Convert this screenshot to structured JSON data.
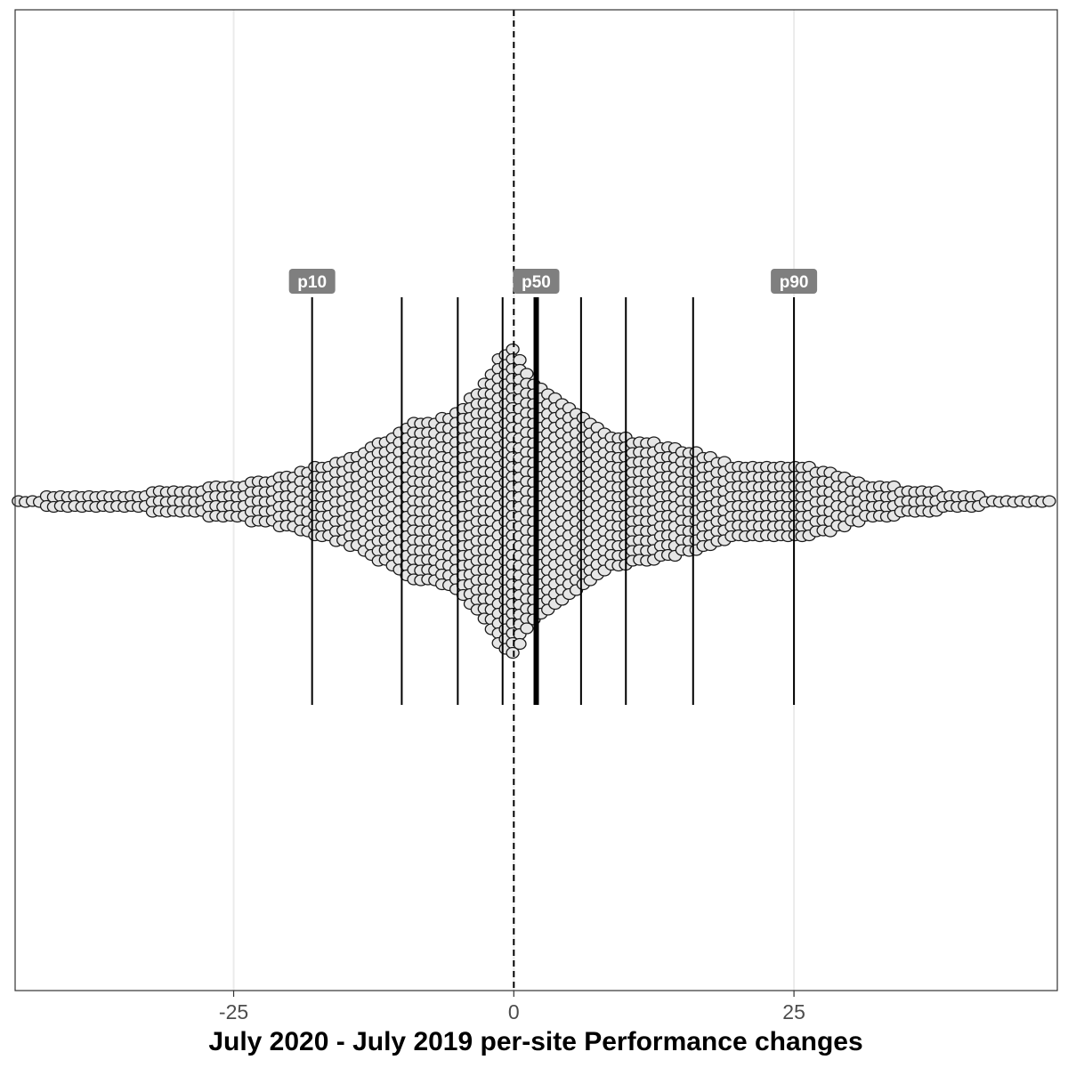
{
  "chart_data": {
    "type": "scatter",
    "subtype": "beeswarm",
    "title": "",
    "xlabel": "July 2020 - July 2019 per-site Performance changes",
    "ylabel": "",
    "xlim": [
      -44.5,
      48.5
    ],
    "x_ticks": [
      -25,
      0,
      25
    ],
    "x_tick_labels": [
      "-25",
      "0",
      "25"
    ],
    "grid": {
      "vertical_major": true,
      "horizontal": false
    },
    "reference_line": {
      "x": 0,
      "style": "dashed"
    },
    "percentile_lines": [
      {
        "x": -18,
        "label": "p10"
      },
      {
        "x": -10,
        "label": ""
      },
      {
        "x": -5,
        "label": ""
      },
      {
        "x": -1,
        "label": ""
      },
      {
        "x": 2,
        "label": "p50",
        "emphasis": true
      },
      {
        "x": 6,
        "label": ""
      },
      {
        "x": 10,
        "label": ""
      },
      {
        "x": 16,
        "label": ""
      },
      {
        "x": 25,
        "label": "p90"
      }
    ],
    "density_profile": [
      {
        "x": -44,
        "count": 1
      },
      {
        "x": -40,
        "count": 2
      },
      {
        "x": -35,
        "count": 2
      },
      {
        "x": -30,
        "count": 3
      },
      {
        "x": -25,
        "count": 4
      },
      {
        "x": -20,
        "count": 6
      },
      {
        "x": -17,
        "count": 8
      },
      {
        "x": -14,
        "count": 10
      },
      {
        "x": -11,
        "count": 14
      },
      {
        "x": -9,
        "count": 17
      },
      {
        "x": -7,
        "count": 17
      },
      {
        "x": -5,
        "count": 19
      },
      {
        "x": -3,
        "count": 24
      },
      {
        "x": -2,
        "count": 27
      },
      {
        "x": -1,
        "count": 31
      },
      {
        "x": 0,
        "count": 32
      },
      {
        "x": 1,
        "count": 28
      },
      {
        "x": 2,
        "count": 24
      },
      {
        "x": 3,
        "count": 23
      },
      {
        "x": 5,
        "count": 20
      },
      {
        "x": 7,
        "count": 17
      },
      {
        "x": 9,
        "count": 14
      },
      {
        "x": 12,
        "count": 13
      },
      {
        "x": 16,
        "count": 11
      },
      {
        "x": 20,
        "count": 8
      },
      {
        "x": 25,
        "count": 8
      },
      {
        "x": 28,
        "count": 7
      },
      {
        "x": 32,
        "count": 4
      },
      {
        "x": 36,
        "count": 3
      },
      {
        "x": 40,
        "count": 2
      },
      {
        "x": 44,
        "count": 1
      },
      {
        "x": 48,
        "count": 1
      }
    ],
    "colors": {
      "point_fill": "#e6e6e6",
      "point_stroke": "#1a1a1a",
      "label_bg": "#7f7f7f",
      "grid": "#ebebeb",
      "panel_border": "#333333"
    }
  }
}
